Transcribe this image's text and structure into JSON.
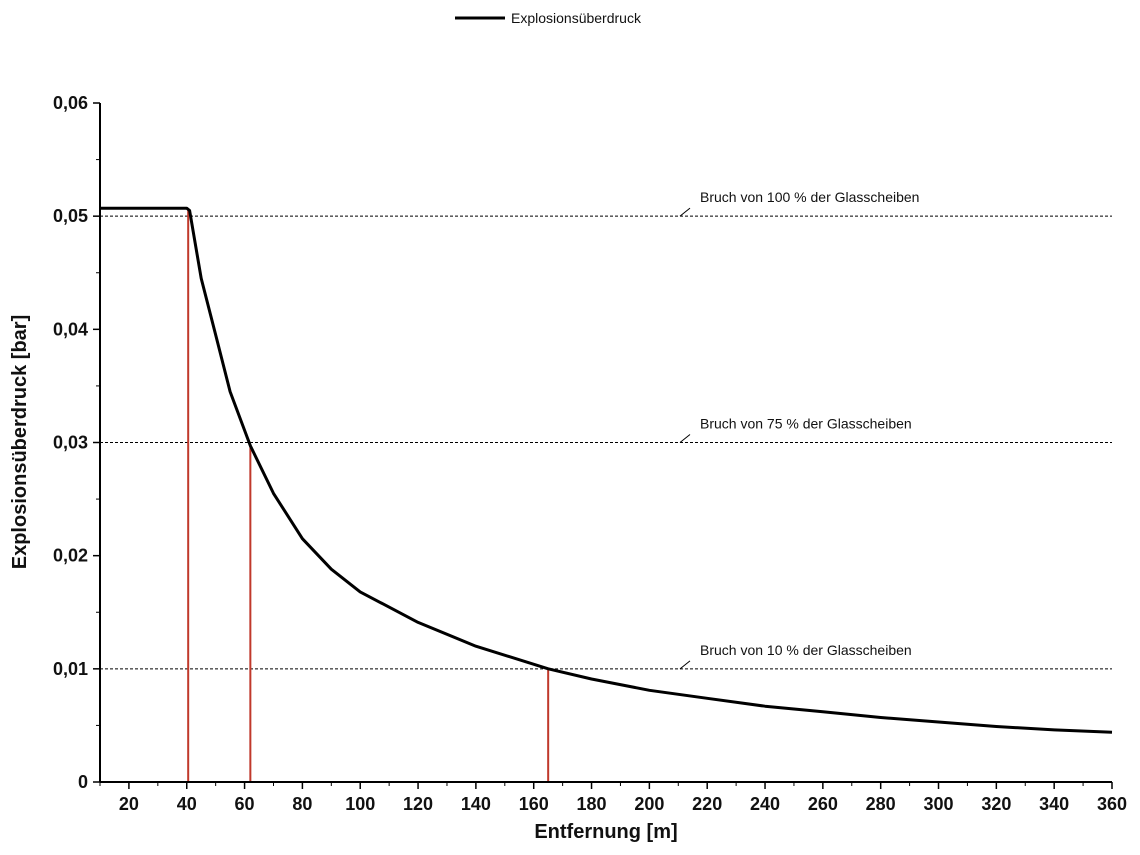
{
  "chart_data": {
    "type": "line",
    "title": "",
    "xlabel": "Entfernung [m]",
    "ylabel": "Explosionsüberdruck [bar]",
    "xlim": [
      10,
      360
    ],
    "ylim": [
      0,
      0.06
    ],
    "xticks": [
      20,
      40,
      60,
      80,
      100,
      120,
      140,
      160,
      180,
      200,
      220,
      240,
      260,
      280,
      300,
      320,
      340,
      360
    ],
    "xtick_labels": [
      "20",
      "40",
      "60",
      "80",
      "100",
      "120",
      "140",
      "160",
      "180",
      "200",
      "220",
      "240",
      "260",
      "280",
      "300",
      "320",
      "340",
      "360"
    ],
    "yticks": [
      0,
      0.01,
      0.02,
      0.03,
      0.04,
      0.05,
      0.06
    ],
    "ytick_labels": [
      "0",
      "0,01",
      "0,02",
      "0,03",
      "0,04",
      "0,05",
      "0,06"
    ],
    "grid": false,
    "legend_position": "top-center",
    "series": [
      {
        "name": "Explosionsüberdruck",
        "color": "#000000",
        "x": [
          10,
          20,
          30,
          40,
          41,
          45,
          50,
          55,
          62,
          70,
          80,
          90,
          100,
          120,
          140,
          165,
          180,
          200,
          220,
          240,
          260,
          280,
          300,
          320,
          340,
          360
        ],
        "y": [
          0.0507,
          0.0507,
          0.0507,
          0.0507,
          0.0505,
          0.0445,
          0.0395,
          0.0345,
          0.0297,
          0.0255,
          0.0215,
          0.0188,
          0.0168,
          0.0141,
          0.012,
          0.01,
          0.0091,
          0.0081,
          0.0074,
          0.0067,
          0.0062,
          0.0057,
          0.0053,
          0.0049,
          0.0046,
          0.0044
        ]
      }
    ],
    "reference_lines": [
      {
        "label": "Bruch von 100 % der Glasscheiben",
        "y": 0.05
      },
      {
        "label": "Bruch von 75 % der Glasscheiben",
        "y": 0.03
      },
      {
        "label": "Bruch von 10 % der Glasscheiben",
        "y": 0.01
      }
    ],
    "marker_lines": [
      {
        "x": 40.5,
        "y": 0.0505
      },
      {
        "x": 62,
        "y": 0.0297
      },
      {
        "x": 165,
        "y": 0.01
      }
    ],
    "marker_color": "#c0392b",
    "reference_color": "#000000"
  }
}
